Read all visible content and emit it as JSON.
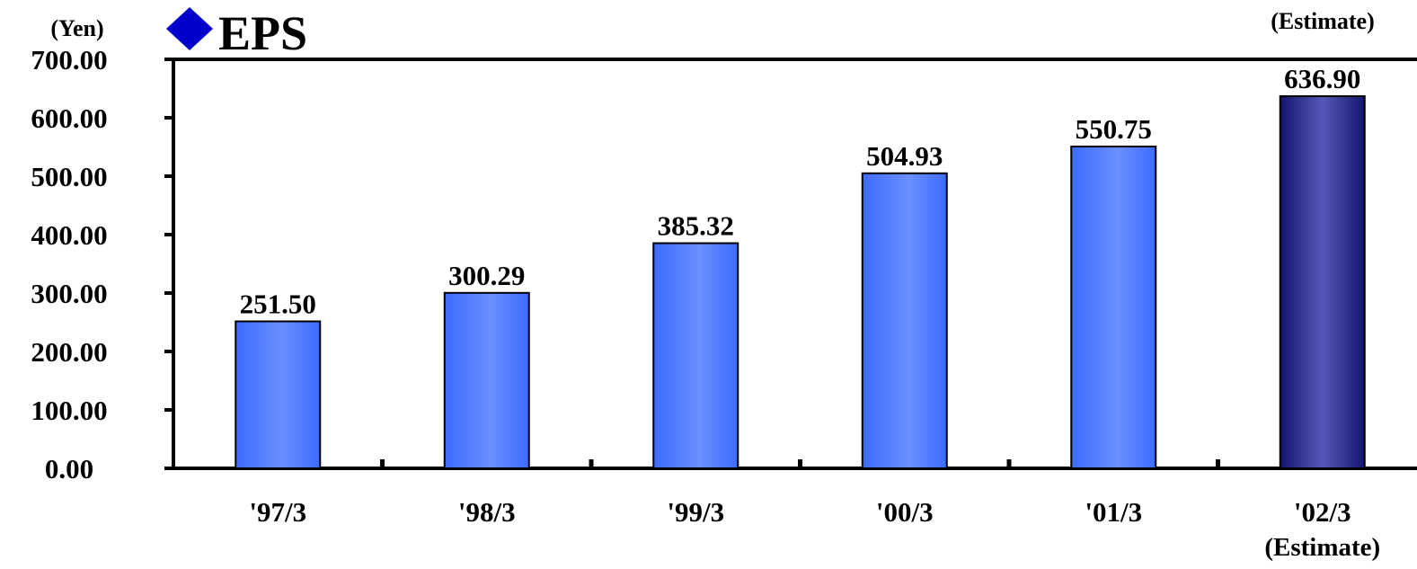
{
  "chart_data": {
    "type": "bar",
    "title": "EPS",
    "ylabel": "(Yen)",
    "xlabel": "",
    "categories": [
      "'97/3",
      "'98/3",
      "'99/3",
      "'00/3",
      "'01/3",
      "'02/3"
    ],
    "category_notes": [
      "",
      "",
      "",
      "",
      "",
      "(Estimate)"
    ],
    "values": [
      251.5,
      300.29,
      385.32,
      504.93,
      550.75,
      636.9
    ],
    "value_labels": [
      "251.50",
      "300.29",
      "385.32",
      "504.93",
      "550.75",
      "636.90"
    ],
    "estimate_note": "(Estimate)",
    "ylim": [
      0,
      700
    ],
    "yticks": [
      0,
      100,
      200,
      300,
      400,
      500,
      600,
      700
    ],
    "ytick_labels": [
      "0.00",
      "100.00",
      "200.00",
      "300.00",
      "400.00",
      "500.00",
      "600.00",
      "700.00"
    ],
    "grid": false,
    "legend": "none",
    "colors": {
      "bar_light": "#6a8fff",
      "bar_mid": "#3d6bff",
      "bar_estimate_light": "#5558b8",
      "bar_estimate_dark": "#12166e",
      "title_marker": "#0000cc"
    },
    "title_marker_icon": "diamond-icon"
  }
}
